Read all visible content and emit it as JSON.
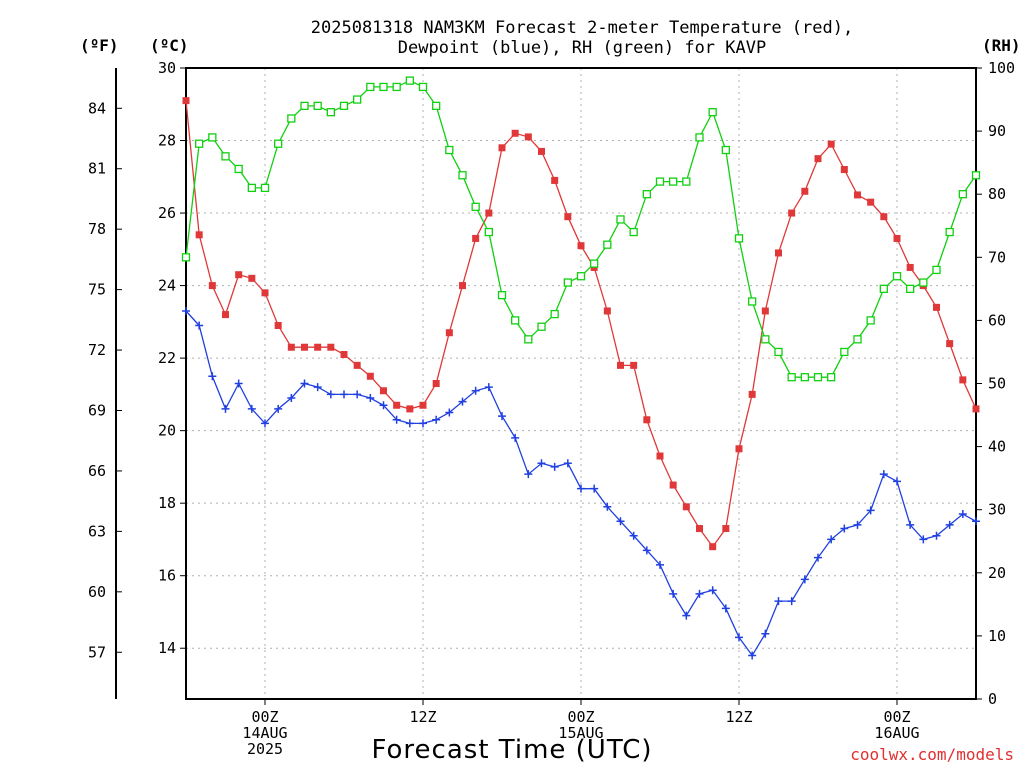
{
  "title_line1": "2025081318 NAM3KM Forecast 2-meter Temperature (red),",
  "title_line2": "Dewpoint (blue), RH (green) for KAVP",
  "unit_f": "(ºF)",
  "unit_c": "(ºC)",
  "unit_rh": "(RH)",
  "xlabel": "Forecast Time (UTC)",
  "credit": "coolwx.com/models",
  "colors": {
    "temperature": "#e03838",
    "dewpoint": "#2040e0",
    "rh": "#10d010",
    "grid": "#b0b0b0"
  },
  "chart_data": {
    "type": "line",
    "ylabel_left": "(ºC)",
    "ylabel_right": "(RH)",
    "ylim_c": [
      12.6,
      30
    ],
    "ylim_rh": [
      0,
      100
    ],
    "c_ticks": [
      14,
      16,
      18,
      20,
      22,
      24,
      26,
      28,
      30
    ],
    "f_ticks": [
      57,
      60,
      63,
      66,
      69,
      72,
      75,
      78,
      81,
      84
    ],
    "rh_ticks": [
      0,
      10,
      20,
      30,
      40,
      50,
      60,
      70,
      80,
      90,
      100
    ],
    "x_range_hours": [
      0,
      60
    ],
    "x_ticks": [
      {
        "hour": 6,
        "labels": [
          "00Z",
          "14AUG",
          "2025"
        ]
      },
      {
        "hour": 18,
        "labels": [
          "12Z"
        ]
      },
      {
        "hour": 30,
        "labels": [
          "00Z",
          "15AUG"
        ]
      },
      {
        "hour": 42,
        "labels": [
          "12Z"
        ]
      },
      {
        "hour": 54,
        "labels": [
          "00Z",
          "16AUG"
        ]
      }
    ],
    "series": [
      {
        "name": "Temperature",
        "values": [
          29.1,
          25.4,
          24.0,
          23.2,
          24.3,
          24.2,
          23.8,
          22.9,
          22.3,
          22.3,
          22.3,
          22.3,
          22.1,
          21.8,
          21.5,
          21.1,
          20.7,
          20.6,
          20.7,
          21.3,
          22.7,
          24.0,
          25.3,
          26.0,
          27.8,
          28.2,
          28.1,
          27.7,
          26.9,
          25.9,
          25.1,
          24.5,
          23.3,
          21.8,
          21.8,
          20.3,
          19.3,
          18.5,
          17.9,
          17.3,
          16.8,
          17.3,
          19.5,
          21.0,
          23.3,
          24.9,
          26.0,
          26.6,
          27.5,
          27.9,
          27.2,
          26.5,
          26.3,
          25.9,
          25.3,
          24.5,
          24.0,
          23.4,
          22.4,
          21.4,
          20.6
        ]
      },
      {
        "name": "Dewpoint",
        "values": [
          23.3,
          22.9,
          21.5,
          20.6,
          21.3,
          20.6,
          20.2,
          20.6,
          20.9,
          21.3,
          21.2,
          21.0,
          21.0,
          21.0,
          20.9,
          20.7,
          20.3,
          20.2,
          20.2,
          20.3,
          20.5,
          20.8,
          21.1,
          21.2,
          20.4,
          19.8,
          18.8,
          19.1,
          19.0,
          19.1,
          18.4,
          18.4,
          17.9,
          17.5,
          17.1,
          16.7,
          16.3,
          15.5,
          14.9,
          15.5,
          15.6,
          15.1,
          14.3,
          13.8,
          14.4,
          15.3,
          15.3,
          15.9,
          16.5,
          17.0,
          17.3,
          17.4,
          17.8,
          18.8,
          18.6,
          17.4,
          17.0,
          17.1,
          17.4,
          17.7,
          17.5
        ]
      },
      {
        "name": "RH",
        "values": [
          70,
          88,
          89,
          86,
          84,
          81,
          81,
          88,
          92,
          94,
          94,
          93,
          94,
          95,
          97,
          97,
          97,
          98,
          97,
          94,
          87,
          83,
          78,
          74,
          64,
          60,
          57,
          59,
          61,
          66,
          67,
          69,
          72,
          76,
          74,
          80,
          82,
          82,
          82,
          89,
          93,
          87,
          73,
          63,
          57,
          55,
          51,
          51,
          51,
          51,
          55,
          57,
          60,
          65,
          67,
          65,
          66,
          68,
          74,
          80,
          83
        ]
      }
    ]
  }
}
